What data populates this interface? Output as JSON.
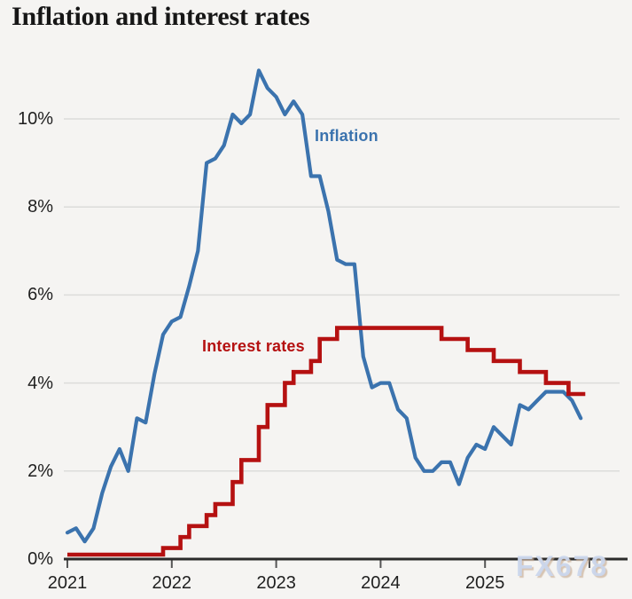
{
  "page_title": "Inflation and interest rates",
  "watermark": {
    "text": "FX678",
    "color": "#cad6ec"
  },
  "chart_data": {
    "type": "line",
    "title": "Inflation and interest rates",
    "grid": "horizontal",
    "legend_position": "inline-labels",
    "xlim": [
      2021,
      2026
    ],
    "ylim": [
      0,
      11.6
    ],
    "x_axis": {
      "tick_labels": [
        "2021",
        "2022",
        "2023",
        "2024",
        "2025"
      ],
      "tick_years": [
        2021,
        2022,
        2023,
        2024,
        2025,
        2026
      ]
    },
    "y_axis": {
      "unit": "%",
      "tick_labels": [
        "0%",
        "2%",
        "4%",
        "6%",
        "8%",
        "10%"
      ],
      "tick_values": [
        0,
        2,
        4,
        6,
        8,
        10
      ]
    },
    "series": [
      {
        "name": "Inflation",
        "color": "#3b73ae",
        "render": "line",
        "unit": "%",
        "start_year": 2021.0,
        "interval_months": 1,
        "values": [
          0.6,
          0.7,
          0.4,
          0.7,
          1.5,
          2.1,
          2.5,
          2.0,
          3.2,
          3.1,
          4.2,
          5.1,
          5.4,
          5.5,
          6.2,
          7.0,
          9.0,
          9.1,
          9.4,
          10.1,
          9.9,
          10.1,
          11.1,
          10.7,
          10.5,
          10.1,
          10.4,
          10.1,
          8.7,
          8.7,
          7.9,
          6.8,
          6.7,
          6.7,
          4.6,
          3.9,
          4.0,
          4.0,
          3.4,
          3.2,
          2.3,
          2.0,
          2.0,
          2.2,
          2.2,
          1.7,
          2.3,
          2.6,
          2.5,
          3.0,
          2.8,
          2.6,
          3.5,
          3.4,
          3.6,
          3.8,
          3.8,
          3.8,
          3.6,
          3.2
        ]
      },
      {
        "name": "Interest rates",
        "color": "#b51111",
        "render": "step",
        "unit": "%",
        "changes": [
          [
            2021.0,
            0.1
          ],
          [
            2021.9167,
            0.25
          ],
          [
            2022.0833,
            0.5
          ],
          [
            2022.1667,
            0.75
          ],
          [
            2022.3333,
            1.0
          ],
          [
            2022.4167,
            1.25
          ],
          [
            2022.5833,
            1.75
          ],
          [
            2022.6667,
            2.25
          ],
          [
            2022.8333,
            3.0
          ],
          [
            2022.9167,
            3.5
          ],
          [
            2023.0833,
            4.0
          ],
          [
            2023.1667,
            4.25
          ],
          [
            2023.3333,
            4.5
          ],
          [
            2023.4167,
            5.0
          ],
          [
            2023.5833,
            5.25
          ],
          [
            2024.5833,
            5.0
          ],
          [
            2024.8333,
            4.75
          ],
          [
            2025.0833,
            4.5
          ],
          [
            2025.3333,
            4.25
          ],
          [
            2025.5833,
            4.0
          ],
          [
            2025.8,
            3.75
          ]
        ],
        "end_year": 2025.96
      }
    ],
    "annotations": [
      {
        "text": "Inflation",
        "series": 0
      },
      {
        "text": "Interest rates",
        "series": 1
      }
    ]
  }
}
